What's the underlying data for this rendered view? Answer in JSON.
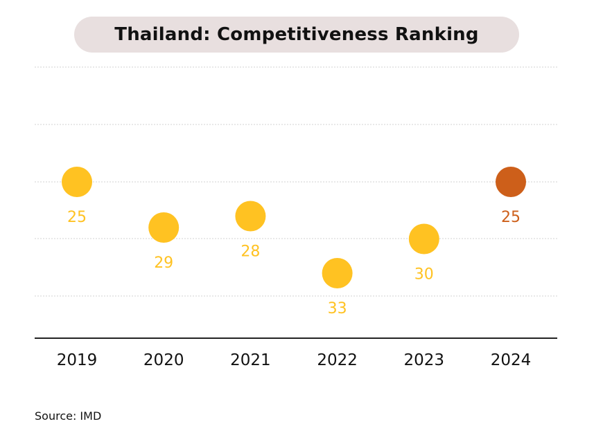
{
  "title": "Thailand: Competitiveness Ranking",
  "source": "Source: IMD",
  "colors": {
    "default": "#FFC222",
    "highlight": "#CD5F1A",
    "title_bg": "#E8DFDF"
  },
  "chart_data": {
    "type": "scatter",
    "title": "Thailand: Competitiveness Ranking",
    "categories": [
      "2019",
      "2020",
      "2021",
      "2022",
      "2023",
      "2024"
    ],
    "values": [
      25,
      29,
      28,
      33,
      30,
      25
    ],
    "highlight": "2024",
    "y_axis": "rank (lower is better), inverted, no tick labels",
    "grid": true,
    "legend": "none"
  }
}
